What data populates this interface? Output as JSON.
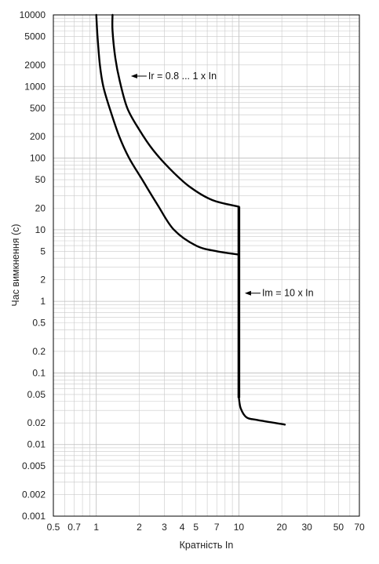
{
  "chart_data": {
    "type": "line",
    "title": "",
    "xlabel": "Кратність In",
    "ylabel": "Час вимкнення (с)",
    "x_scale": "log",
    "y_scale": "log",
    "xlim": [
      0.5,
      70
    ],
    "ylim": [
      0.001,
      10000
    ],
    "grid": true,
    "x_ticks": [
      {
        "value": 0.5,
        "label": "0.5"
      },
      {
        "value": 0.7,
        "label": "0.7"
      },
      {
        "value": 1,
        "label": "1"
      },
      {
        "value": 2,
        "label": "2"
      },
      {
        "value": 3,
        "label": "3"
      },
      {
        "value": 4,
        "label": "4"
      },
      {
        "value": 5,
        "label": "5"
      },
      {
        "value": 7,
        "label": "7"
      },
      {
        "value": 10,
        "label": "10"
      },
      {
        "value": 20,
        "label": "20"
      },
      {
        "value": 30,
        "label": "30"
      },
      {
        "value": 50,
        "label": "50"
      },
      {
        "value": 70,
        "label": "70"
      }
    ],
    "y_ticks": [
      {
        "value": 10000,
        "label": "10000"
      },
      {
        "value": 5000,
        "label": "5000"
      },
      {
        "value": 2000,
        "label": "2000"
      },
      {
        "value": 1000,
        "label": "1000"
      },
      {
        "value": 500,
        "label": "500"
      },
      {
        "value": 200,
        "label": "200"
      },
      {
        "value": 100,
        "label": "100"
      },
      {
        "value": 50,
        "label": "50"
      },
      {
        "value": 20,
        "label": "20"
      },
      {
        "value": 10,
        "label": "10"
      },
      {
        "value": 5,
        "label": "5"
      },
      {
        "value": 2,
        "label": "2"
      },
      {
        "value": 1,
        "label": "1"
      },
      {
        "value": 0.5,
        "label": "0.5"
      },
      {
        "value": 0.2,
        "label": "0.2"
      },
      {
        "value": 0.1,
        "label": "0.1"
      },
      {
        "value": 0.05,
        "label": "0.05"
      },
      {
        "value": 0.02,
        "label": "0.02"
      },
      {
        "value": 0.01,
        "label": "0.01"
      },
      {
        "value": 0.005,
        "label": "0.005"
      },
      {
        "value": 0.002,
        "label": "0.002"
      },
      {
        "value": 0.001,
        "label": "0.001"
      }
    ],
    "series": [
      {
        "values": [
          {
            "x": 1.0,
            "y": 10000
          },
          {
            "x": 1.02,
            "y": 5000
          },
          {
            "x": 1.06,
            "y": 2000
          },
          {
            "x": 1.12,
            "y": 1000
          },
          {
            "x": 1.24,
            "y": 500
          },
          {
            "x": 1.45,
            "y": 200
          },
          {
            "x": 1.7,
            "y": 100
          },
          {
            "x": 2.1,
            "y": 50
          },
          {
            "x": 2.7,
            "y": 22
          },
          {
            "x": 3.5,
            "y": 10
          },
          {
            "x": 5.0,
            "y": 6
          },
          {
            "x": 7.0,
            "y": 5
          },
          {
            "x": 10.0,
            "y": 4.5
          }
        ]
      },
      {
        "values": [
          {
            "x": 1.3,
            "y": 10000
          },
          {
            "x": 1.3,
            "y": 6000
          },
          {
            "x": 1.36,
            "y": 2500
          },
          {
            "x": 1.46,
            "y": 1200
          },
          {
            "x": 1.65,
            "y": 500
          },
          {
            "x": 2.0,
            "y": 250
          },
          {
            "x": 2.5,
            "y": 130
          },
          {
            "x": 3.3,
            "y": 70
          },
          {
            "x": 4.5,
            "y": 40
          },
          {
            "x": 6.5,
            "y": 26
          },
          {
            "x": 10.0,
            "y": 21
          }
        ]
      },
      {
        "values": [
          {
            "x": 10.0,
            "y": 21
          },
          {
            "x": 10.0,
            "y": 0.045
          },
          {
            "x": 10.3,
            "y": 0.032
          },
          {
            "x": 11.3,
            "y": 0.024
          },
          {
            "x": 13.5,
            "y": 0.022
          },
          {
            "x": 21.0,
            "y": 0.019
          }
        ]
      }
    ],
    "annotations": [
      {
        "text": "Ir = 0.8 ... 1 x In",
        "x": 1.75,
        "y": 1400
      },
      {
        "text": "Im = 10 x In",
        "x": 11.0,
        "y": 1.3
      }
    ]
  }
}
